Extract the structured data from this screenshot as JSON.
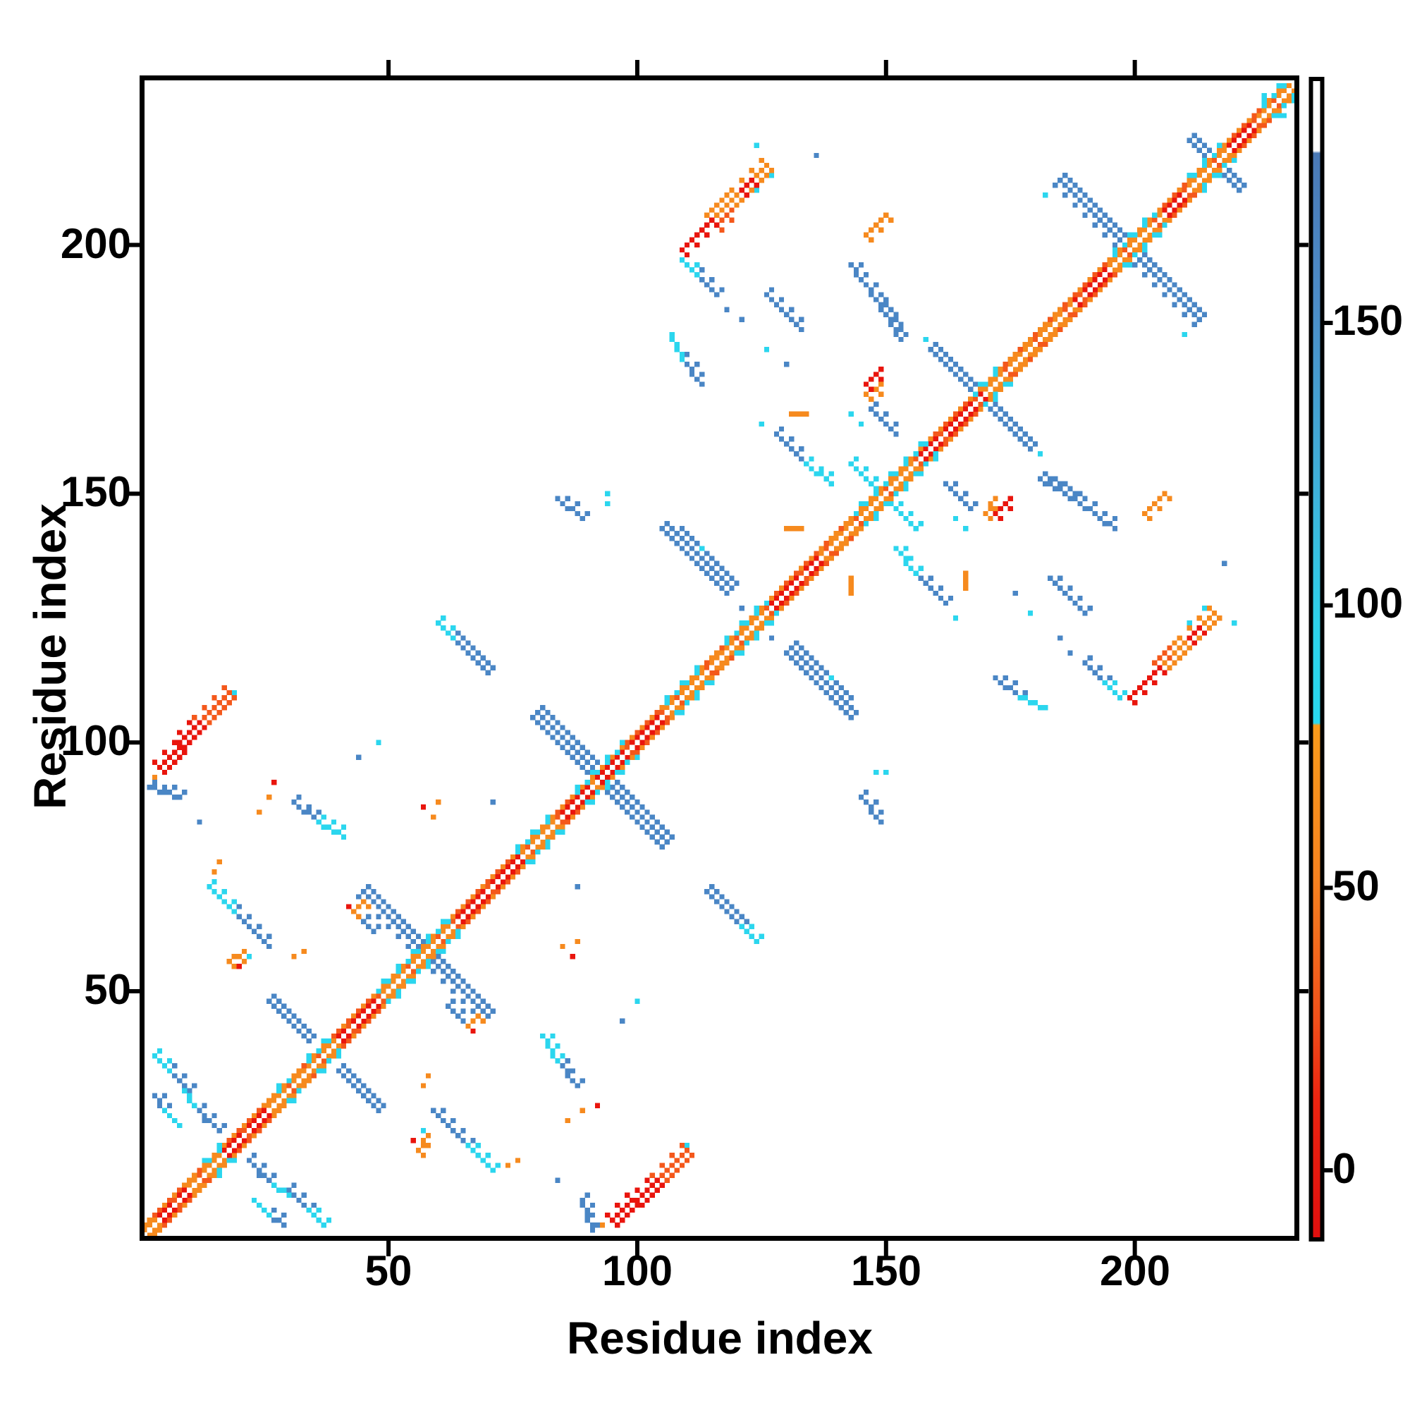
{
  "figure": {
    "kind": "protein-residue-contact-map",
    "background": "#ffffff",
    "frame_color": "#000000"
  },
  "axes": {
    "x_title": "Residue index",
    "y_title": "Residue index",
    "x_ticks": [
      "50",
      "100",
      "150",
      "200"
    ],
    "y_ticks": [
      "50",
      "100",
      "150",
      "200"
    ],
    "tick_values": [
      50,
      100,
      150,
      200
    ],
    "range": [
      0,
      233
    ]
  },
  "colorbar": {
    "tick_labels": [
      "150",
      "100",
      "50",
      "0"
    ],
    "tick_values": [
      150,
      100,
      50,
      0
    ],
    "value_range": [
      -12,
      193
    ],
    "stops": [
      {
        "o": 0.0,
        "c": "#ffffff"
      },
      {
        "o": 0.062,
        "c": "#ffffff"
      },
      {
        "o": 0.064,
        "c": "#4a79b6"
      },
      {
        "o": 0.19,
        "c": "#4c8cc8"
      },
      {
        "o": 0.36,
        "c": "#3eb3db"
      },
      {
        "o": 0.47,
        "c": "#2dd2ea"
      },
      {
        "o": 0.555,
        "c": "#29d9ef"
      },
      {
        "o": 0.557,
        "c": "#f89b1b"
      },
      {
        "o": 0.69,
        "c": "#f6821f"
      },
      {
        "o": 0.81,
        "c": "#f0501a"
      },
      {
        "o": 0.88,
        "c": "#ec2410"
      },
      {
        "o": 1.0,
        "c": "#df0f0e"
      }
    ]
  },
  "palette": {
    "r": "#e9150d",
    "or": "#f4581b",
    "o": "#f68a1e",
    "c": "#2bd6ee",
    "b": "#4a86c5",
    "w": "#ffffff"
  },
  "chart_data": {
    "type": "heatmap",
    "subtype": "contact-map",
    "title": "",
    "xlabel": "Residue index",
    "ylabel": "Residue index",
    "x_range": [
      0,
      233
    ],
    "y_range": [
      0,
      233
    ],
    "n_residues": 232,
    "symmetric": true,
    "grid": false,
    "legend_position": "right-colorbar",
    "diagonal": {
      "red_segments": [
        [
          4,
          9
        ],
        [
          17,
          25
        ],
        [
          40,
          47
        ],
        [
          63,
          76
        ],
        [
          84,
          90
        ],
        [
          92,
          105
        ],
        [
          127,
          136
        ],
        [
          157,
          169
        ],
        [
          188,
          194
        ],
        [
          206,
          210
        ],
        [
          219,
          224
        ]
      ],
      "cyan_zones": [
        [
          13,
          16
        ],
        [
          27,
          30
        ],
        [
          34,
          38
        ],
        [
          48,
          62
        ],
        [
          76,
          83
        ],
        [
          88,
          97
        ],
        [
          106,
          112
        ],
        [
          118,
          126
        ],
        [
          143,
          158
        ],
        [
          168,
          172
        ],
        [
          195,
          204
        ],
        [
          211,
          217
        ],
        [
          226,
          231
        ]
      ]
    },
    "features": [
      [
        26,
        48,
        34,
        40,
        2,
        "b"
      ],
      [
        45,
        70,
        56,
        59,
        2.6,
        "b"
      ],
      [
        80,
        106,
        92,
        94,
        3,
        "b"
      ],
      [
        108,
        142,
        119,
        131,
        2.4,
        "b"
      ],
      [
        159,
        179,
        169,
        169,
        2.2,
        "b"
      ],
      [
        185,
        213,
        198,
        200,
        2.8,
        "b"
      ],
      [
        211,
        221,
        215,
        217,
        2,
        "b"
      ],
      [
        143,
        156,
        150,
        149,
        1.6,
        "c"
      ],
      [
        3,
        37,
        6,
        34,
        1.3,
        "c"
      ],
      [
        6,
        34,
        10,
        30,
        1.6,
        "b"
      ],
      [
        14,
        71,
        19,
        66,
        1.4,
        "c"
      ],
      [
        19,
        66,
        26,
        59,
        1.8,
        "b"
      ],
      [
        31,
        88,
        36,
        84,
        1.8,
        "b"
      ],
      [
        36,
        84,
        41,
        81,
        1.3,
        "c"
      ],
      [
        22,
        16,
        27,
        11,
        1.5,
        "b"
      ],
      [
        27,
        11,
        30,
        9,
        1.2,
        "c"
      ],
      [
        23,
        8,
        26,
        5,
        1.2,
        "c"
      ],
      [
        26,
        5,
        29,
        3,
        1.4,
        "b"
      ],
      [
        2,
        91,
        8,
        89,
        1.3,
        "b"
      ],
      [
        60,
        124,
        63,
        121,
        1.3,
        "c"
      ],
      [
        63,
        121,
        70,
        114,
        2,
        "b"
      ],
      [
        107,
        182,
        109,
        177,
        1.2,
        "c"
      ],
      [
        109,
        177,
        113,
        172,
        1.5,
        "b"
      ],
      [
        126,
        190,
        133,
        183,
        1.8,
        "b"
      ],
      [
        128,
        162,
        134,
        156,
        1.8,
        "b"
      ],
      [
        134,
        156,
        139,
        152,
        1.4,
        "c"
      ],
      [
        147,
        167,
        152,
        162,
        1.6,
        "b"
      ],
      [
        181,
        153,
        189,
        148,
        2,
        "b"
      ],
      [
        189,
        148,
        196,
        143,
        1.6,
        "b"
      ],
      [
        105,
        143,
        112,
        136,
        2.2,
        "b"
      ],
      [
        112,
        136,
        118,
        130,
        1.8,
        "b"
      ],
      [
        145,
        89,
        149,
        84,
        1.7,
        "b"
      ],
      [
        109,
        197,
        112,
        194,
        1.5,
        "c"
      ],
      [
        112,
        194,
        116,
        190,
        1.7,
        "b"
      ],
      [
        62,
        47,
        65,
        44,
        1.5,
        "b"
      ],
      [
        95,
        4,
        104,
        12,
        2.4,
        "r"
      ],
      [
        104,
        12,
        110,
        18,
        2.4,
        "or"
      ],
      [
        109,
        199,
        115,
        205,
        1.6,
        "r"
      ],
      [
        115,
        205,
        120,
        210,
        3,
        "o"
      ],
      [
        116,
        204,
        119,
        207,
        1.5,
        "or"
      ],
      [
        120,
        210,
        126,
        216,
        2.6,
        "o"
      ],
      [
        121,
        211,
        123,
        213,
        1.4,
        "r"
      ],
      [
        146,
        172,
        149,
        175,
        1.8,
        "r"
      ],
      [
        146,
        170,
        149,
        172,
        1.3,
        "o"
      ],
      [
        202,
        146,
        206,
        150,
        1.5,
        "o"
      ],
      [
        130,
        143,
        133,
        143,
        1.2,
        "o"
      ],
      [
        131,
        166,
        134,
        166,
        1.2,
        "o"
      ],
      [
        18,
        56,
        21,
        58,
        1.4,
        "o"
      ],
      [
        66,
        43,
        68,
        45,
        1.3,
        "o"
      ],
      [
        24,
        86,
        24,
        86,
        1,
        "o"
      ],
      [
        26,
        89,
        26,
        89,
        1,
        "o"
      ],
      [
        57,
        31,
        57,
        31,
        1,
        "o"
      ],
      [
        58,
        33,
        58,
        33,
        1,
        "o"
      ],
      [
        76,
        16,
        76,
        16,
        1,
        "o"
      ],
      [
        74,
        15,
        74,
        15,
        1,
        "o"
      ],
      [
        85,
        59,
        85,
        59,
        1,
        "o"
      ],
      [
        88,
        60,
        88,
        60,
        1,
        "o"
      ],
      [
        93,
        3,
        93,
        3,
        1,
        "o"
      ],
      [
        87,
        57,
        87,
        57,
        1,
        "r"
      ],
      [
        20,
        55,
        20,
        55,
        1,
        "r"
      ],
      [
        67,
        42,
        67,
        42,
        1,
        "r"
      ],
      [
        27,
        92,
        27,
        92,
        1,
        "r"
      ],
      [
        110,
        19,
        110,
        19,
        1,
        "c"
      ],
      [
        127,
        214,
        127,
        214,
        1,
        "c"
      ],
      [
        48,
        100,
        48,
        100,
        1,
        "c"
      ],
      [
        124,
        211,
        124,
        211,
        1,
        "c"
      ],
      [
        182,
        210,
        182,
        210,
        1,
        "c"
      ],
      [
        226,
        230,
        226,
        230,
        1,
        "c"
      ],
      [
        113,
        139,
        113,
        139,
        1,
        "c"
      ],
      [
        143,
        166,
        143,
        166,
        1,
        "c"
      ],
      [
        145,
        164,
        145,
        164,
        1,
        "c"
      ],
      [
        125,
        164,
        125,
        164,
        1,
        "c"
      ],
      [
        158,
        181,
        158,
        181,
        1,
        "c"
      ],
      [
        22,
        57,
        22,
        57,
        1,
        "c"
      ],
      [
        148,
        94,
        148,
        94,
        1,
        "c"
      ],
      [
        150,
        94,
        150,
        94,
        1,
        "c"
      ],
      [
        179,
        126,
        179,
        126,
        1,
        "c"
      ],
      [
        220,
        124,
        220,
        124,
        1,
        "c"
      ],
      [
        2,
        2,
        2,
        2,
        1,
        "c"
      ],
      [
        136,
        218,
        136,
        218,
        1,
        "b"
      ],
      [
        44,
        97,
        44,
        97,
        1,
        "b"
      ],
      [
        13,
        24,
        13,
        24,
        1,
        "b"
      ],
      [
        12,
        84,
        12,
        84,
        1,
        "b"
      ],
      [
        121,
        127,
        121,
        127,
        1,
        "b"
      ],
      [
        88,
        71,
        88,
        71,
        1,
        "b"
      ],
      [
        118,
        187,
        118,
        187,
        1,
        "b"
      ],
      [
        121,
        185,
        121,
        185,
        1,
        "b"
      ],
      [
        176,
        130,
        176,
        130,
        1,
        "b"
      ]
    ]
  }
}
